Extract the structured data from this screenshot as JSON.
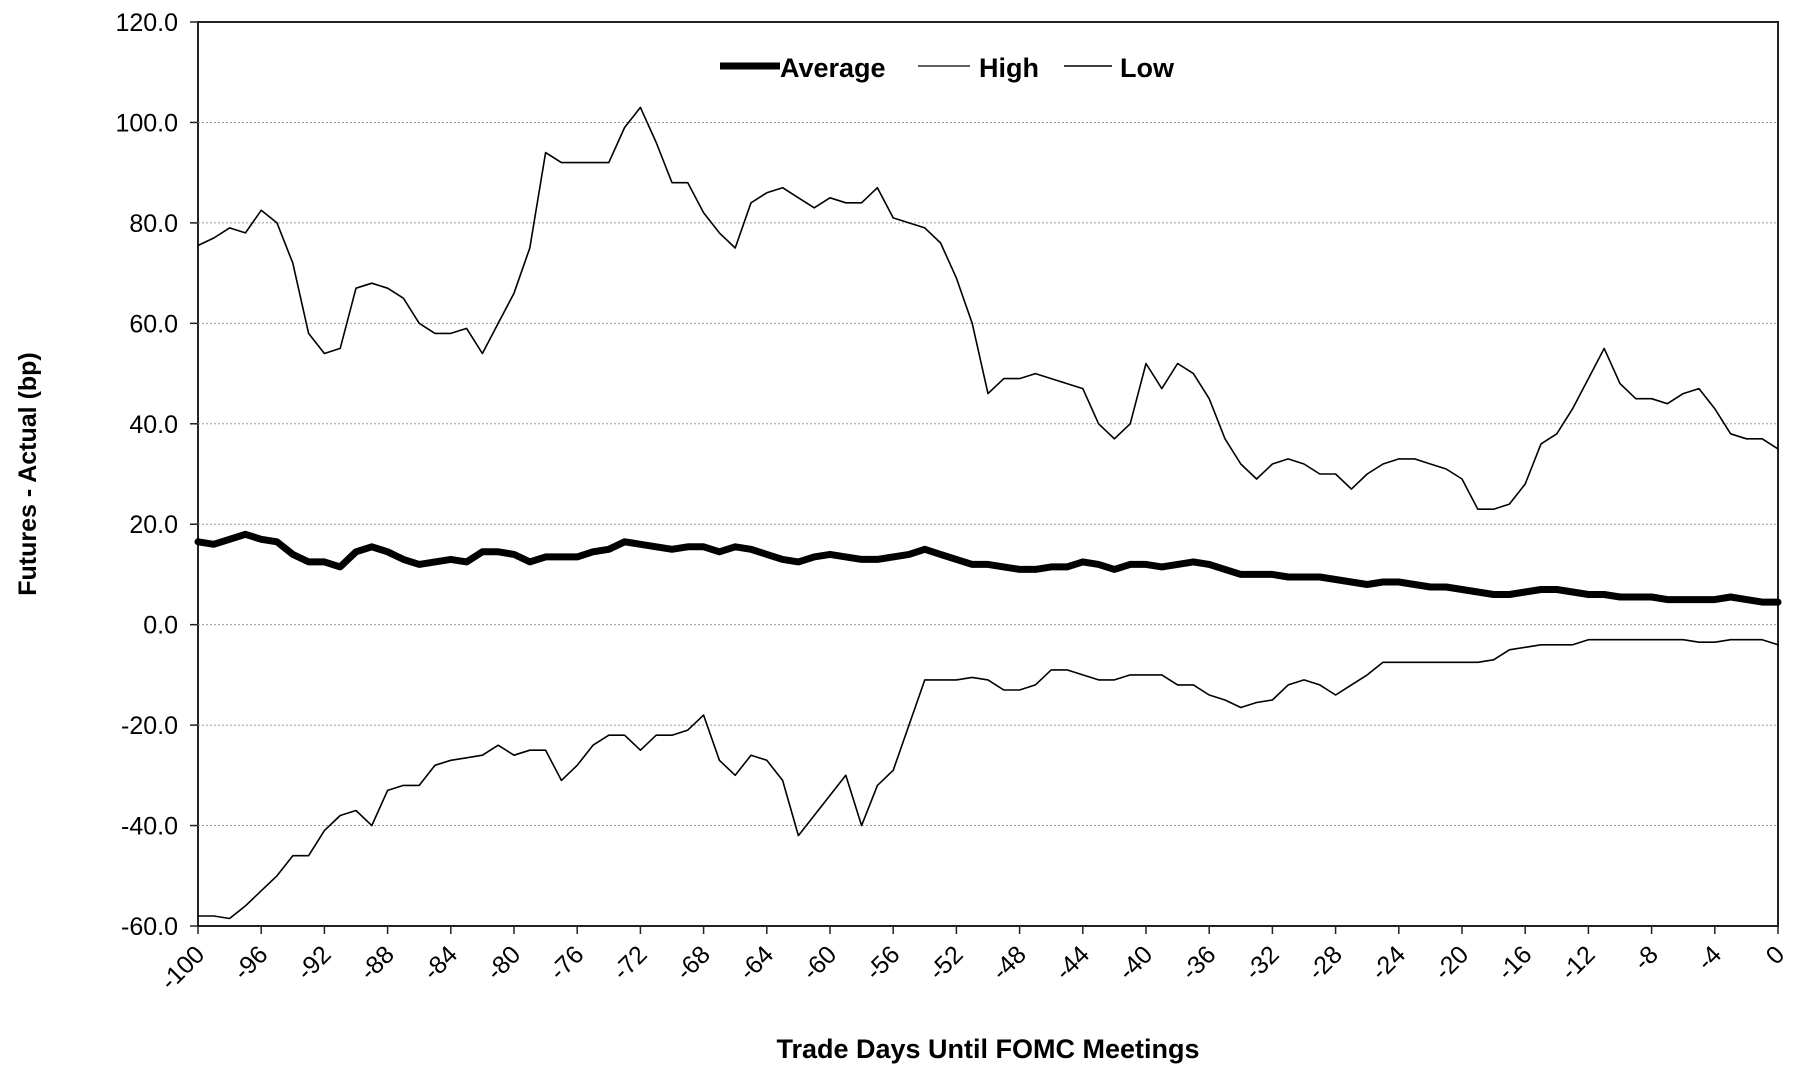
{
  "chart_data": {
    "type": "line",
    "title": "",
    "xlabel": "Trade Days Until FOMC Meetings",
    "ylabel": "Futures - Actual (bp)",
    "xlim": [
      -100,
      0
    ],
    "ylim": [
      -60,
      120
    ],
    "x_ticks": [
      -100,
      -96,
      -92,
      -88,
      -84,
      -80,
      -76,
      -72,
      -68,
      -64,
      -60,
      -56,
      -52,
      -48,
      -44,
      -40,
      -36,
      -32,
      -28,
      -24,
      -20,
      -16,
      -12,
      -8,
      -4,
      0
    ],
    "x_tick_labels": [
      "-100",
      "-96",
      "-92",
      "-88",
      "-84",
      "-80",
      "-76",
      "-72",
      "-68",
      "-64",
      "-60",
      "-56",
      "-52",
      "-48",
      "-44",
      "-40",
      "-36",
      "-32",
      "-28",
      "-24",
      "-20",
      "-16",
      "-12",
      "-8",
      "-4",
      "0"
    ],
    "y_ticks": [
      -60,
      -40,
      -20,
      0,
      20,
      40,
      60,
      80,
      100,
      120
    ],
    "y_tick_labels": [
      "-60.0",
      "-40.0",
      "-20.0",
      "0.0",
      "20.0",
      "40.0",
      "60.0",
      "80.0",
      "100.0",
      "120.0"
    ],
    "grid": true,
    "legend_position": "top-center",
    "series": [
      {
        "name": "Average",
        "color": "#000000",
        "x": [
          -100,
          -99,
          -98,
          -97,
          -96,
          -95,
          -94,
          -93,
          -92,
          -91,
          -90,
          -89,
          -88,
          -87,
          -86,
          -85,
          -84,
          -83,
          -82,
          -81,
          -80,
          -79,
          -78,
          -77,
          -76,
          -75,
          -74,
          -73,
          -72,
          -71,
          -70,
          -69,
          -68,
          -67,
          -66,
          -65,
          -64,
          -63,
          -62,
          -61,
          -60,
          -59,
          -58,
          -57,
          -56,
          -55,
          -54,
          -53,
          -52,
          -51,
          -50,
          -49,
          -48,
          -47,
          -46,
          -45,
          -44,
          -43,
          -42,
          -41,
          -40,
          -39,
          -38,
          -37,
          -36,
          -35,
          -34,
          -33,
          -32,
          -31,
          -30,
          -29,
          -28,
          -27,
          -26,
          -25,
          -24,
          -23,
          -22,
          -21,
          -20,
          -19,
          -18,
          -17,
          -16,
          -15,
          -14,
          -13,
          -12,
          -11,
          -10,
          -9,
          -8,
          -7,
          -6,
          -5,
          -4,
          -3,
          -2,
          -1,
          0
        ],
        "values": [
          16.5,
          16,
          17,
          18,
          17,
          16.5,
          14,
          12.5,
          12.5,
          11.5,
          14.5,
          15.5,
          14.5,
          13,
          12,
          12.5,
          13,
          12.5,
          14.5,
          14.5,
          14,
          12.5,
          13.5,
          13.5,
          13.5,
          14.5,
          15,
          16.5,
          16,
          15.5,
          15,
          15.5,
          15.5,
          14.5,
          15.5,
          15,
          14,
          13,
          12.5,
          13.5,
          14,
          13.5,
          13,
          13,
          13.5,
          14,
          15,
          14,
          13,
          12,
          12,
          11.5,
          11,
          11,
          11.5,
          11.5,
          12.5,
          12,
          11,
          12,
          12,
          11.5,
          12,
          12.5,
          12,
          11,
          10,
          10,
          10,
          9.5,
          9.5,
          9.5,
          9,
          8.5,
          8,
          8.5,
          8.5,
          8,
          7.5,
          7.5,
          7,
          6.5,
          6,
          6,
          6.5,
          7,
          7,
          6.5,
          6,
          6,
          5.5,
          5.5,
          5.5,
          5,
          5,
          5,
          5,
          5.5,
          5,
          4.5,
          4.5
        ]
      },
      {
        "name": "High",
        "color": "#000000",
        "x": [
          -100,
          -99,
          -98,
          -97,
          -96,
          -95,
          -94,
          -93,
          -92,
          -91,
          -90,
          -89,
          -88,
          -87,
          -86,
          -85,
          -84,
          -83,
          -82,
          -81,
          -80,
          -79,
          -78,
          -77,
          -76,
          -75,
          -74,
          -73,
          -72,
          -71,
          -70,
          -69,
          -68,
          -67,
          -66,
          -65,
          -64,
          -63,
          -62,
          -61,
          -60,
          -59,
          -58,
          -57,
          -56,
          -55,
          -54,
          -53,
          -52,
          -51,
          -50,
          -49,
          -48,
          -47,
          -46,
          -45,
          -44,
          -43,
          -42,
          -41,
          -40,
          -39,
          -38,
          -37,
          -36,
          -35,
          -34,
          -33,
          -32,
          -31,
          -30,
          -29,
          -28,
          -27,
          -26,
          -25,
          -24,
          -23,
          -22,
          -21,
          -20,
          -19,
          -18,
          -17,
          -16,
          -15,
          -14,
          -13,
          -12,
          -11,
          -10,
          -9,
          -8,
          -7,
          -6,
          -5,
          -4,
          -3,
          -2,
          -1,
          0
        ],
        "values": [
          75.5,
          77,
          79,
          78,
          82.5,
          80,
          72,
          58,
          54,
          55,
          67,
          68,
          67,
          65,
          60,
          58,
          58,
          59,
          54,
          60,
          66,
          75,
          94,
          92,
          92,
          92,
          92,
          99,
          103,
          96,
          88,
          88,
          82,
          78,
          75,
          84,
          86,
          87,
          85,
          83,
          85,
          84,
          84,
          87,
          81,
          80,
          79,
          76,
          69,
          60,
          46,
          49,
          49,
          50,
          49,
          48,
          47,
          40,
          37,
          40,
          52,
          47,
          52,
          50,
          45,
          37,
          32,
          29,
          32,
          33,
          32,
          30,
          30,
          27,
          30,
          32,
          33,
          33,
          32,
          31,
          29,
          23,
          23,
          24,
          28,
          36,
          38,
          43,
          49,
          55,
          48,
          45,
          45,
          44,
          46,
          47,
          43,
          38,
          37,
          37,
          35
        ]
      },
      {
        "name": "Low",
        "color": "#000000",
        "x": [
          -100,
          -99,
          -98,
          -97,
          -96,
          -95,
          -94,
          -93,
          -92,
          -91,
          -90,
          -89,
          -88,
          -87,
          -86,
          -85,
          -84,
          -83,
          -82,
          -81,
          -80,
          -79,
          -78,
          -77,
          -76,
          -75,
          -74,
          -73,
          -72,
          -71,
          -70,
          -69,
          -68,
          -67,
          -66,
          -65,
          -64,
          -63,
          -62,
          -61,
          -60,
          -59,
          -58,
          -57,
          -56,
          -55,
          -54,
          -53,
          -52,
          -51,
          -50,
          -49,
          -48,
          -47,
          -46,
          -45,
          -44,
          -43,
          -42,
          -41,
          -40,
          -39,
          -38,
          -37,
          -36,
          -35,
          -34,
          -33,
          -32,
          -31,
          -30,
          -29,
          -28,
          -27,
          -26,
          -25,
          -24,
          -23,
          -22,
          -21,
          -20,
          -19,
          -18,
          -17,
          -16,
          -15,
          -14,
          -13,
          -12,
          -11,
          -10,
          -9,
          -8,
          -7,
          -6,
          -5,
          -4,
          -3,
          -2,
          -1,
          0
        ],
        "values": [
          -58,
          -58,
          -58.5,
          -56,
          -53,
          -50,
          -46,
          -46,
          -41,
          -38,
          -37,
          -40,
          -33,
          -32,
          -32,
          -28,
          -27,
          -26.5,
          -26,
          -24,
          -26,
          -25,
          -25,
          -31,
          -28,
          -24,
          -22,
          -22,
          -25,
          -22,
          -22,
          -21,
          -18,
          -27,
          -30,
          -26,
          -27,
          -31,
          -42,
          -38,
          -34,
          -30,
          -40,
          -32,
          -29,
          -20,
          -11,
          -11,
          -11,
          -10.5,
          -11,
          -13,
          -13,
          -12,
          -9,
          -9,
          -10,
          -11,
          -11,
          -10,
          -10,
          -10,
          -12,
          -12,
          -14,
          -15,
          -16.5,
          -15.5,
          -15,
          -12,
          -11,
          -12,
          -14,
          -12,
          -10,
          -7.5,
          -7.5,
          -7.5,
          -7.5,
          -7.5,
          -7.5,
          -7.5,
          -7,
          -5,
          -4.5,
          -4,
          -4,
          -4,
          -3,
          -3,
          -3,
          -3,
          -3,
          -3,
          -3,
          -3.5,
          -3.5,
          -3,
          -3,
          -3,
          -4
        ]
      }
    ]
  }
}
